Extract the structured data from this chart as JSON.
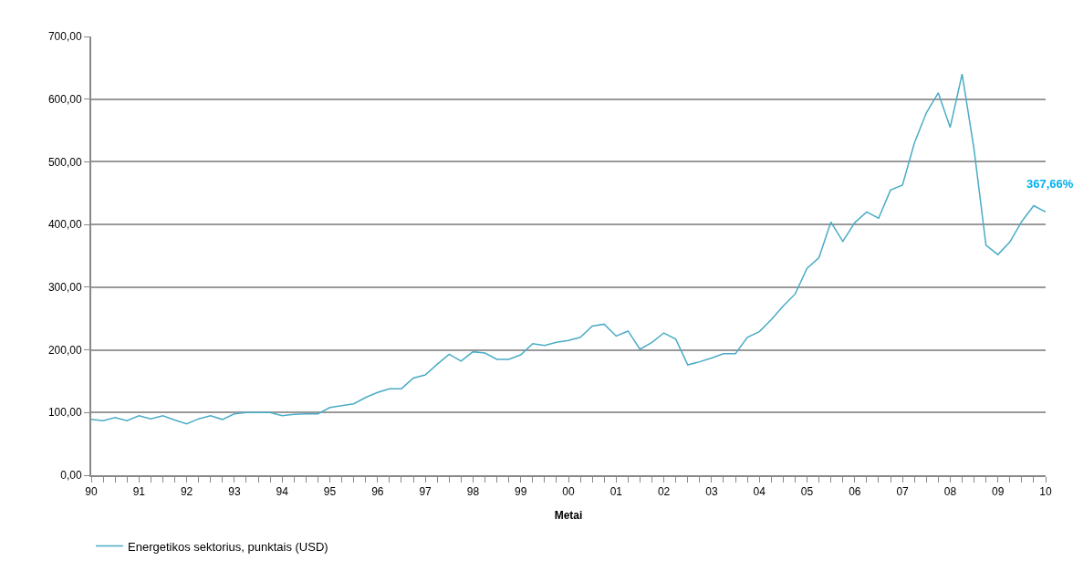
{
  "chart_data": {
    "type": "line",
    "xlabel": "Metai",
    "x": [
      1990,
      1990.25,
      1990.5,
      1990.75,
      1991,
      1991.25,
      1991.5,
      1991.75,
      1992,
      1992.25,
      1992.5,
      1992.75,
      1993,
      1993.25,
      1993.5,
      1993.75,
      1994,
      1994.25,
      1994.5,
      1994.75,
      1995,
      1995.25,
      1995.5,
      1995.75,
      1996,
      1996.25,
      1996.5,
      1996.75,
      1997,
      1997.25,
      1997.5,
      1997.75,
      1998,
      1998.25,
      1998.5,
      1998.75,
      1999,
      1999.25,
      1999.5,
      1999.75,
      2000,
      2000.25,
      2000.5,
      2000.75,
      2001,
      2001.25,
      2001.5,
      2001.75,
      2002,
      2002.25,
      2002.5,
      2002.75,
      2003,
      2003.25,
      2003.5,
      2003.75,
      2004,
      2004.25,
      2004.5,
      2004.75,
      2005,
      2005.25,
      2005.5,
      2005.75,
      2006,
      2006.25,
      2006.5,
      2006.75,
      2007,
      2007.25,
      2007.5,
      2007.75,
      2008,
      2008.25,
      2008.5,
      2008.75,
      2009,
      2009.25,
      2009.5,
      2009.75,
      2010
    ],
    "series": [
      {
        "name": "Energetikos sektorius, punktais (USD)",
        "color": "#4bacc6",
        "values": [
          89,
          87,
          92,
          87,
          95,
          90,
          95,
          88,
          82,
          90,
          95,
          89,
          98,
          100,
          100,
          100,
          95,
          97,
          98,
          98,
          108,
          111,
          114,
          124,
          132,
          138,
          138,
          155,
          160,
          177,
          193,
          182,
          197,
          195,
          185,
          185,
          192,
          210,
          207,
          212,
          215,
          220,
          238,
          241,
          222,
          230,
          201,
          212,
          227,
          217,
          176,
          181,
          187,
          194,
          194,
          220,
          229,
          248,
          270,
          289,
          330,
          347,
          404,
          373,
          403,
          420,
          410,
          455,
          463,
          530,
          578,
          610,
          555,
          640,
          520,
          367,
          352,
          372,
          405,
          430,
          420
        ]
      }
    ],
    "xlim": [
      1990,
      2010
    ],
    "xticks": [
      {
        "value": 1990,
        "label": "90"
      },
      {
        "value": 1991,
        "label": "91"
      },
      {
        "value": 1992,
        "label": "92"
      },
      {
        "value": 1993,
        "label": "93"
      },
      {
        "value": 1994,
        "label": "94"
      },
      {
        "value": 1995,
        "label": "95"
      },
      {
        "value": 1996,
        "label": "96"
      },
      {
        "value": 1997,
        "label": "97"
      },
      {
        "value": 1998,
        "label": "98"
      },
      {
        "value": 1999,
        "label": "99"
      },
      {
        "value": 2000,
        "label": "00"
      },
      {
        "value": 2001,
        "label": "01"
      },
      {
        "value": 2002,
        "label": "02"
      },
      {
        "value": 2003,
        "label": "03"
      },
      {
        "value": 2004,
        "label": "04"
      },
      {
        "value": 2005,
        "label": "05"
      },
      {
        "value": 2006,
        "label": "06"
      },
      {
        "value": 2007,
        "label": "07"
      },
      {
        "value": 2008,
        "label": "08"
      },
      {
        "value": 2009,
        "label": "09"
      },
      {
        "value": 2010,
        "label": "10"
      }
    ],
    "ylim": [
      0,
      700
    ],
    "yticks": [
      {
        "value": 0,
        "label": "0,00"
      },
      {
        "value": 100,
        "label": "100,00"
      },
      {
        "value": 200,
        "label": "200,00"
      },
      {
        "value": 300,
        "label": "300,00"
      },
      {
        "value": 400,
        "label": "400,00"
      },
      {
        "value": 500,
        "label": "500,00"
      },
      {
        "value": 600,
        "label": "600,00"
      },
      {
        "value": 700,
        "label": "700,00"
      }
    ],
    "annotations": [
      "367,66%"
    ],
    "grid": "y",
    "legend": "bottom left",
    "marker": "none",
    "line_style": "solid"
  }
}
